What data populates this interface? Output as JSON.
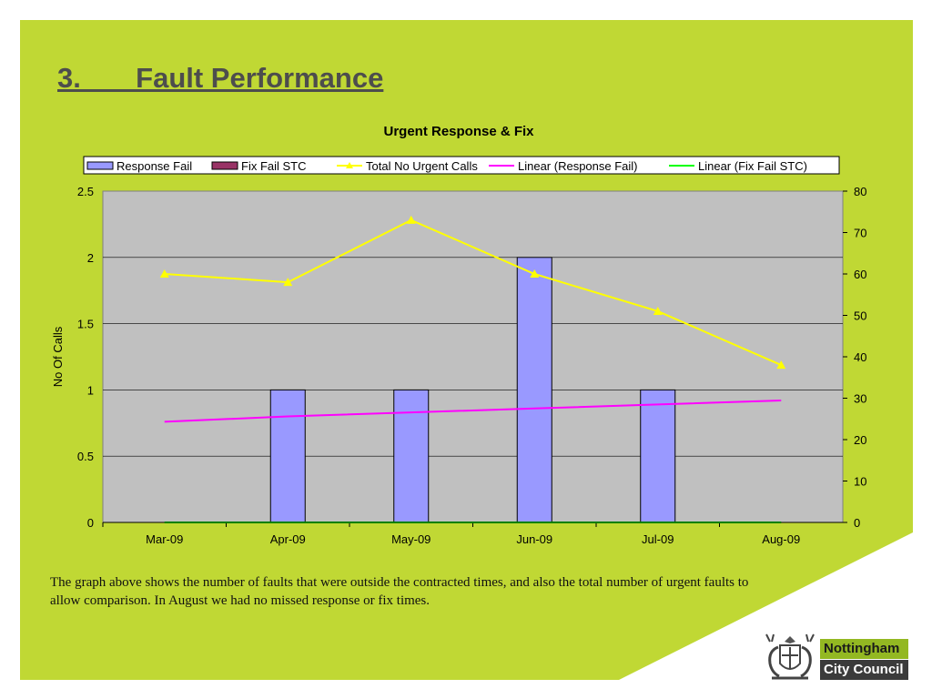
{
  "slide": {
    "title": "3.       Fault Performance",
    "caption": "The graph above shows the number of faults that were outside the contracted times, and also the total number of urgent faults to allow comparison. In August we had no missed response or fix times.",
    "colors": {
      "background": "#c0d834",
      "plot": "#c0c0c0"
    }
  },
  "logo": {
    "line1": "Nottingham",
    "line2": "City Council"
  },
  "chart_data": {
    "type": "bar",
    "title": "Urgent Response & Fix",
    "ylabel": "No Of Calls",
    "categories": [
      "Mar-09",
      "Apr-09",
      "May-09",
      "Jun-09",
      "Jul-09",
      "Aug-09"
    ],
    "ylim": [
      0,
      2.5
    ],
    "y2lim": [
      0,
      80
    ],
    "yticks": [
      "0",
      "0.5",
      "1",
      "1.5",
      "2",
      "2.5"
    ],
    "y2ticks": [
      "0",
      "10",
      "20",
      "30",
      "40",
      "50",
      "60",
      "70",
      "80"
    ],
    "grid": true,
    "legend_position": "top",
    "series": [
      {
        "name": "Response Fail",
        "kind": "bar",
        "axis": "left",
        "color": "#9999ff",
        "values": [
          0,
          1,
          1,
          2,
          1,
          0
        ]
      },
      {
        "name": "Fix Fail STC",
        "kind": "bar",
        "axis": "left",
        "color": "#993366",
        "values": [
          0,
          0,
          0,
          0,
          0,
          0
        ]
      },
      {
        "name": "Total No Urgent Calls",
        "kind": "line",
        "axis": "right",
        "color": "#ffff00",
        "marker": "triangle",
        "values": [
          60,
          58,
          73,
          60,
          51,
          38
        ]
      },
      {
        "name": "Linear (Response Fail)",
        "kind": "trend",
        "axis": "left",
        "color": "#ff00ff",
        "values": [
          0.76,
          0.8,
          0.83,
          0.86,
          0.89,
          0.92
        ]
      },
      {
        "name": "Linear (Fix Fail STC)",
        "kind": "trend",
        "axis": "left",
        "color": "#00ff00",
        "values": [
          0,
          0,
          0,
          0,
          0,
          0
        ]
      }
    ]
  }
}
